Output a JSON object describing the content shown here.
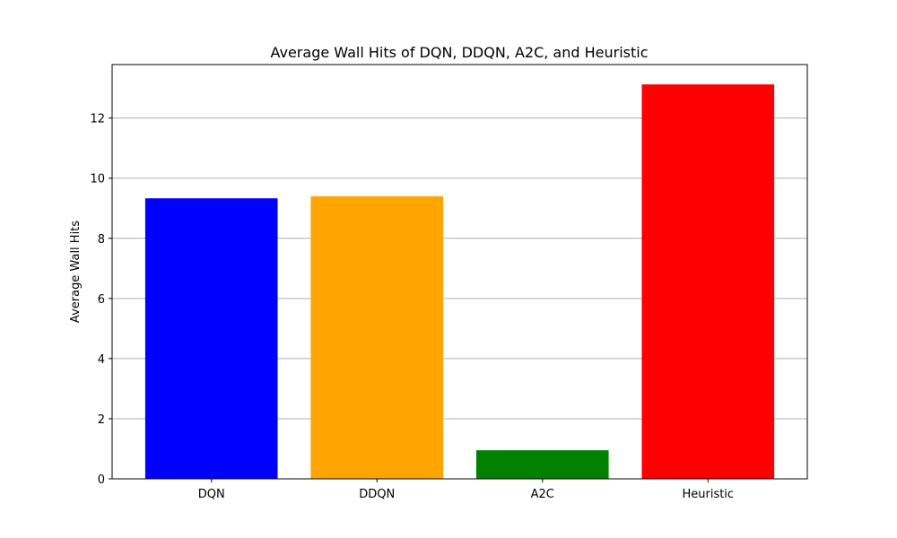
{
  "chart_data": {
    "type": "bar",
    "title": "Average Wall Hits of DQN, DDQN, A2C, and Heuristic",
    "xlabel": "",
    "ylabel": "Average Wall Hits",
    "categories": [
      "DQN",
      "DDQN",
      "A2C",
      "Heuristic"
    ],
    "values": [
      9.33,
      9.4,
      0.95,
      13.12
    ],
    "colors": [
      "#0000ff",
      "#ffa500",
      "#008000",
      "#ff0000"
    ],
    "ylim": [
      0,
      13.78
    ],
    "yticks": [
      0,
      2,
      4,
      6,
      8,
      10,
      12
    ],
    "grid": "y"
  }
}
